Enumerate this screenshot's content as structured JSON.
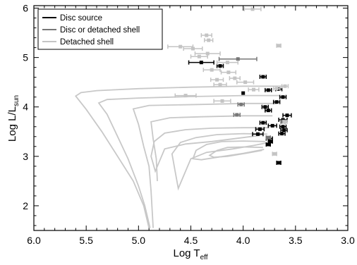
{
  "chart_data": {
    "type": "scatter",
    "xlabel": {
      "main": "Log T",
      "sub": "eff"
    },
    "ylabel": {
      "main": "Log L/L",
      "sub": "sun"
    },
    "xlim": [
      6.0,
      3.0
    ],
    "ylim": [
      1.5,
      6.05
    ],
    "x_ticks": [
      "6.0",
      "5.5",
      "5.0",
      "4.5",
      "4.0",
      "3.5",
      "3.0"
    ],
    "y_ticks": [
      "2",
      "3",
      "4",
      "5",
      "6"
    ],
    "legend": {
      "placement": "top-left",
      "entries": [
        {
          "label": "Disc source",
          "color": "#000000"
        },
        {
          "label": "Disc or detached shell",
          "color": "#777777"
        },
        {
          "label": "Detached shell",
          "color": "#c4c4c4"
        }
      ]
    },
    "colors": {
      "disc": "#000000",
      "disc_or_shell": "#777777",
      "shell": "#c4c4c4",
      "tracks": "#c8c8c8"
    },
    "series": [
      {
        "name": "Disc source",
        "color": "#000000",
        "points": [
          {
            "x": 4.4,
            "y": 4.9,
            "xerr": 0.12
          },
          {
            "x": 4.22,
            "y": 4.83,
            "xerr": 0.03
          },
          {
            "x": 3.81,
            "y": 4.61,
            "xerr": 0.03
          },
          {
            "x": 3.76,
            "y": 4.34,
            "xerr": 0.03
          },
          {
            "x": 3.66,
            "y": 4.36,
            "xerr": 0.03
          },
          {
            "x": 3.62,
            "y": 4.2,
            "xerr": 0.03
          },
          {
            "x": 3.68,
            "y": 4.1,
            "xerr": 0.03
          },
          {
            "x": 3.79,
            "y": 4.0,
            "xerr": 0.03
          },
          {
            "x": 3.76,
            "y": 3.93,
            "xerr": 0.03
          },
          {
            "x": 3.58,
            "y": 3.83,
            "xerr": 0.04
          },
          {
            "x": 3.62,
            "y": 3.74,
            "xerr": 0.04
          },
          {
            "x": 3.81,
            "y": 3.68,
            "xerr": 0.03
          },
          {
            "x": 3.72,
            "y": 3.62,
            "xerr": 0.04
          },
          {
            "x": 3.62,
            "y": 3.6,
            "xerr": 0.03
          },
          {
            "x": 3.84,
            "y": 3.55,
            "xerr": 0.04
          },
          {
            "x": 3.61,
            "y": 3.53,
            "xerr": 0.03
          },
          {
            "x": 3.86,
            "y": 3.45,
            "xerr": 0.05
          },
          {
            "x": 3.63,
            "y": 3.46,
            "xerr": 0.03
          },
          {
            "x": 3.75,
            "y": 3.36,
            "xerr": 0.03
          },
          {
            "x": 3.74,
            "y": 3.3,
            "xerr": 0.02
          },
          {
            "x": 3.76,
            "y": 3.24,
            "xerr": 0.02
          },
          {
            "x": 3.66,
            "y": 2.87,
            "xerr": 0.02
          },
          {
            "x": 4.0,
            "y": 4.28,
            "xerr": 0.0
          }
        ]
      },
      {
        "name": "Disc or detached shell",
        "color": "#777777",
        "points": [
          {
            "x": 4.05,
            "y": 4.97,
            "xerr": 0.18
          },
          {
            "x": 4.02,
            "y": 4.05,
            "xerr": 0.03
          },
          {
            "x": 4.06,
            "y": 3.84,
            "xerr": 0.03
          },
          {
            "x": 3.76,
            "y": 3.38,
            "xerr": 0.02
          },
          {
            "x": 3.62,
            "y": 3.7,
            "xerr": 0.02
          }
        ]
      },
      {
        "name": "Detached shell",
        "color": "#c4c4c4",
        "points": [
          {
            "x": 3.91,
            "y": 5.98,
            "xerr": 0.08
          },
          {
            "x": 4.35,
            "y": 5.45,
            "xerr": 0.05
          },
          {
            "x": 4.33,
            "y": 5.35,
            "xerr": 0.04
          },
          {
            "x": 4.6,
            "y": 5.22,
            "xerr": 0.12
          },
          {
            "x": 4.48,
            "y": 5.18,
            "xerr": 0.09
          },
          {
            "x": 4.34,
            "y": 5.08,
            "xerr": 0.12
          },
          {
            "x": 4.42,
            "y": 5.02,
            "xerr": 0.08
          },
          {
            "x": 3.66,
            "y": 5.24,
            "xerr": 0.02
          },
          {
            "x": 4.15,
            "y": 4.9,
            "xerr": 0.1
          },
          {
            "x": 4.3,
            "y": 4.75,
            "xerr": 0.08
          },
          {
            "x": 4.14,
            "y": 4.7,
            "xerr": 0.07
          },
          {
            "x": 3.98,
            "y": 4.5,
            "xerr": 0.08
          },
          {
            "x": 4.08,
            "y": 4.58,
            "xerr": 0.05
          },
          {
            "x": 4.25,
            "y": 4.55,
            "xerr": 0.06
          },
          {
            "x": 4.22,
            "y": 4.45,
            "xerr": 0.06
          },
          {
            "x": 3.9,
            "y": 4.35,
            "xerr": 0.05
          },
          {
            "x": 3.68,
            "y": 4.37,
            "xerr": 0.03
          },
          {
            "x": 3.6,
            "y": 4.42,
            "xerr": 0.03
          },
          {
            "x": 4.55,
            "y": 4.23,
            "xerr": 0.1
          },
          {
            "x": 4.2,
            "y": 4.12,
            "xerr": 0.08
          },
          {
            "x": 3.6,
            "y": 3.7,
            "xerr": 0.02
          },
          {
            "x": 3.7,
            "y": 3.05,
            "xerr": 0.02
          }
        ]
      }
    ],
    "tracks": [
      [
        [
          3.6,
          4.42
        ],
        [
          3.7,
          4.42
        ],
        [
          4.0,
          4.42
        ],
        [
          4.5,
          4.4
        ],
        [
          5.0,
          4.37
        ],
        [
          5.4,
          4.33
        ],
        [
          5.55,
          4.29
        ],
        [
          5.6,
          4.22
        ],
        [
          5.5,
          3.95
        ],
        [
          5.35,
          3.5
        ],
        [
          5.2,
          3.0
        ],
        [
          5.05,
          2.5
        ],
        [
          4.95,
          2.0
        ],
        [
          4.9,
          1.55
        ]
      ],
      [
        [
          3.65,
          4.23
        ],
        [
          4.0,
          4.23
        ],
        [
          4.5,
          4.21
        ],
        [
          5.0,
          4.18
        ],
        [
          5.3,
          4.15
        ],
        [
          5.38,
          4.08
        ],
        [
          5.3,
          3.85
        ],
        [
          5.2,
          3.4
        ],
        [
          5.1,
          2.95
        ],
        [
          5.0,
          2.4
        ],
        [
          4.94,
          2.0
        ],
        [
          4.89,
          1.55
        ]
      ],
      [
        [
          3.68,
          4.07
        ],
        [
          4.0,
          4.07
        ],
        [
          4.4,
          4.05
        ],
        [
          4.9,
          4.03
        ],
        [
          5.05,
          3.96
        ],
        [
          5.0,
          3.65
        ],
        [
          4.95,
          3.2
        ],
        [
          4.9,
          2.8
        ],
        [
          4.88,
          2.3
        ],
        [
          4.86,
          1.55
        ]
      ],
      [
        [
          3.72,
          3.82
        ],
        [
          4.0,
          3.82
        ],
        [
          4.4,
          3.8
        ],
        [
          4.7,
          3.78
        ],
        [
          4.88,
          3.7
        ],
        [
          4.86,
          3.35
        ],
        [
          4.83,
          2.95
        ],
        [
          4.82,
          2.5
        ]
      ],
      [
        [
          3.75,
          3.58
        ],
        [
          4.0,
          3.58
        ],
        [
          4.3,
          3.57
        ],
        [
          4.55,
          3.54
        ],
        [
          4.75,
          3.47
        ],
        [
          4.85,
          3.3
        ],
        [
          4.88,
          3.0
        ],
        [
          4.84,
          2.7
        ],
        [
          4.8,
          2.9
        ],
        [
          4.75,
          3.15
        ],
        [
          4.55,
          3.25
        ],
        [
          4.3,
          3.3
        ],
        [
          4.0,
          3.38
        ],
        [
          3.82,
          3.43
        ]
      ],
      [
        [
          3.77,
          3.45
        ],
        [
          4.0,
          3.46
        ],
        [
          4.25,
          3.44
        ],
        [
          4.45,
          3.38
        ],
        [
          4.6,
          3.28
        ],
        [
          4.68,
          3.05
        ],
        [
          4.65,
          2.7
        ],
        [
          4.62,
          2.35
        ],
        [
          4.58,
          2.55
        ],
        [
          4.5,
          2.95
        ],
        [
          4.35,
          3.08
        ],
        [
          4.1,
          3.15
        ],
        [
          3.9,
          3.22
        ],
        [
          3.78,
          3.27
        ]
      ],
      [
        [
          3.79,
          3.3
        ],
        [
          4.0,
          3.31
        ],
        [
          4.2,
          3.3
        ],
        [
          4.35,
          3.24
        ],
        [
          4.45,
          3.12
        ],
        [
          4.48,
          2.95
        ],
        [
          4.4,
          2.93
        ],
        [
          4.25,
          2.98
        ],
        [
          4.0,
          3.06
        ],
        [
          3.8,
          3.14
        ]
      ],
      [
        [
          3.81,
          3.18
        ],
        [
          4.0,
          3.19
        ],
        [
          4.15,
          3.18
        ],
        [
          4.25,
          3.12
        ],
        [
          4.32,
          3.02
        ],
        [
          4.28,
          2.98
        ],
        [
          4.15,
          3.0
        ],
        [
          3.95,
          3.07
        ],
        [
          3.82,
          3.12
        ]
      ]
    ]
  }
}
